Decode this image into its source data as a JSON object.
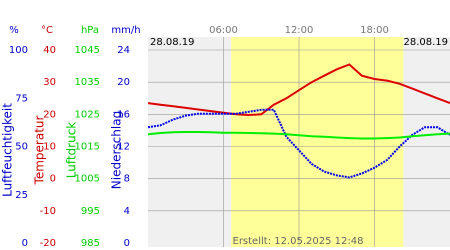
{
  "chart_data": {
    "type": "line",
    "date_left": "28.08.19",
    "date_right": "28.08.19",
    "footer": "Erstellt: 12.05.2025 12:48",
    "xlim": [
      0,
      24
    ],
    "xticks": [
      {
        "value": 6,
        "label": "06:00"
      },
      {
        "value": 12,
        "label": "12:00"
      },
      {
        "value": 18,
        "label": "18:00"
      }
    ],
    "daylight": [
      6.6,
      20.3
    ],
    "grid": true,
    "axes": [
      {
        "unit": "%",
        "label": "Luftfeuchtigkeit",
        "color": "#0000cc",
        "ylim": [
          0,
          100
        ],
        "yticks": [
          0,
          25,
          50,
          75,
          100
        ]
      },
      {
        "unit": "°C",
        "label": "Temperatur",
        "color": "#cc0000",
        "ylim": [
          -20,
          40
        ],
        "yticks": [
          -20,
          -10,
          0,
          10,
          20,
          30,
          40
        ]
      },
      {
        "unit": "hPa",
        "label": "Luftdruck",
        "color": "#00cc00",
        "ylim": [
          985,
          1045
        ],
        "yticks": [
          985,
          995,
          1005,
          1015,
          1025,
          1035,
          1045
        ]
      },
      {
        "unit": "mm/h",
        "label": "Niederschlag",
        "color": "#0000cc",
        "ylim": [
          0,
          24
        ],
        "yticks": [
          0,
          4,
          8,
          12,
          16,
          20,
          24
        ]
      }
    ],
    "x": [
      0,
      1,
      2,
      3,
      4,
      5,
      6,
      7,
      8,
      9,
      10,
      11,
      12,
      13,
      14,
      15,
      16,
      17,
      18,
      19,
      20,
      21,
      22,
      23,
      24
    ],
    "series": [
      {
        "color": "#dd0000",
        "axis": 1,
        "values": [
          23.5,
          23,
          22.5,
          22,
          21.5,
          21,
          20.5,
          20,
          19.8,
          20,
          23,
          25,
          27.5,
          30,
          32,
          34,
          35.5,
          32,
          31,
          30.5,
          29.5,
          28,
          26.5,
          25,
          23.5
        ]
      },
      {
        "color": "#0000ee",
        "axis": 0,
        "values": [
          60,
          61,
          64,
          66,
          67,
          67,
          67,
          67,
          68,
          69,
          69,
          55,
          48,
          41,
          37,
          35,
          34,
          36,
          39,
          43,
          50,
          56,
          60,
          60,
          56
        ]
      },
      {
        "color": "#00ee00",
        "axis": 2,
        "values": [
          1018.8,
          1019.2,
          1019.4,
          1019.5,
          1019.5,
          1019.4,
          1019.3,
          1019.3,
          1019.2,
          1019.1,
          1019.0,
          1018.8,
          1018.5,
          1018.2,
          1018.0,
          1017.8,
          1017.6,
          1017.5,
          1017.5,
          1017.6,
          1017.8,
          1018.2,
          1018.5,
          1018.8,
          1019.0
        ]
      }
    ]
  }
}
